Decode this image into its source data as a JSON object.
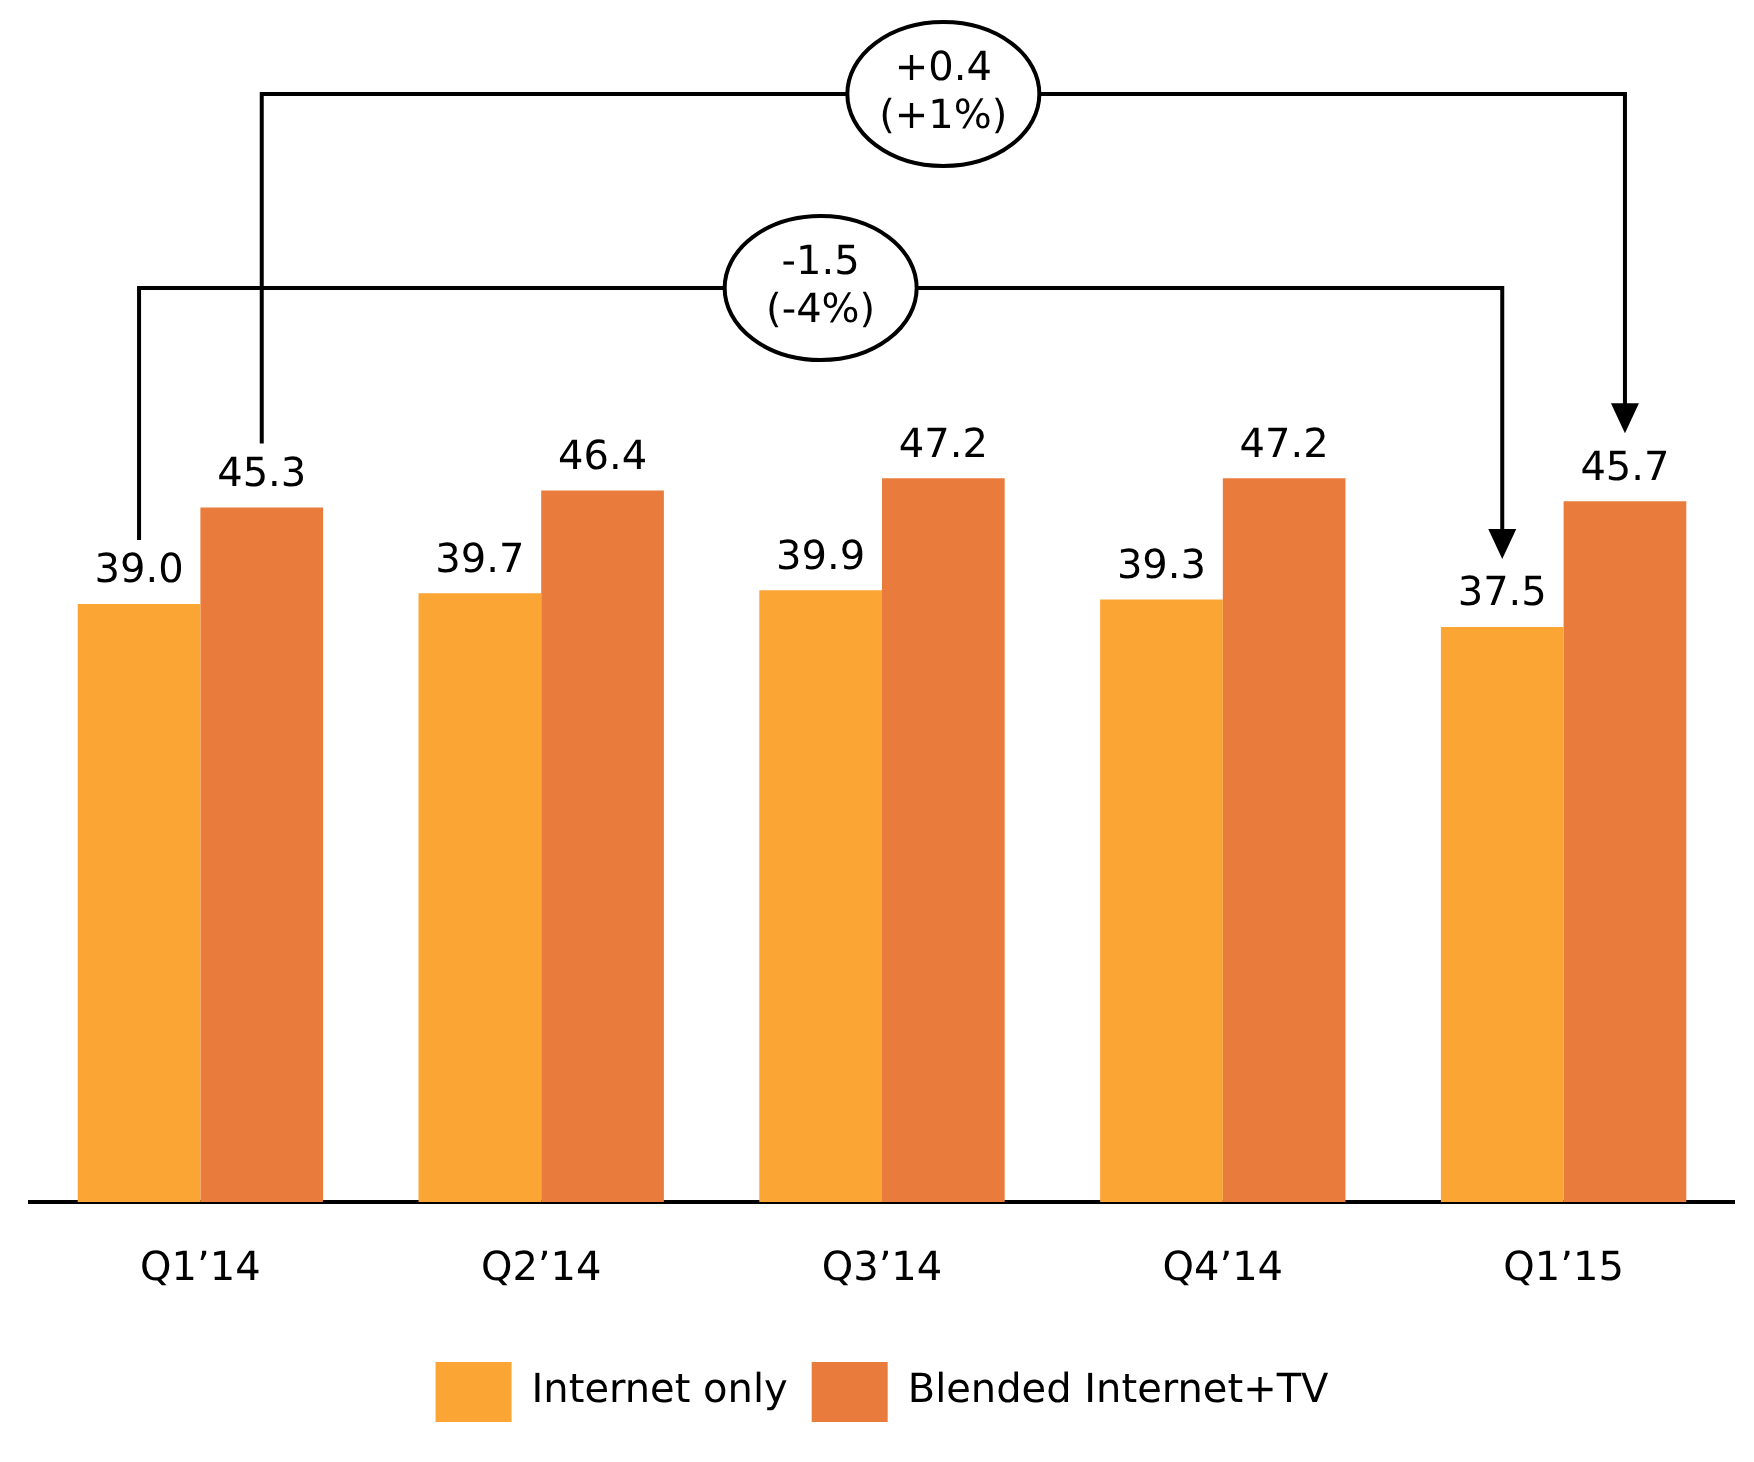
{
  "chart_data": {
    "type": "bar",
    "categories": [
      "Q1’14",
      "Q2’14",
      "Q3’14",
      "Q4’14",
      "Q1’15"
    ],
    "series": [
      {
        "name": "Internet only",
        "color": "#fba535",
        "values": [
          39.0,
          39.7,
          39.9,
          39.3,
          37.5
        ],
        "value_labels": [
          "39.0",
          "39.7",
          "39.9",
          "39.3",
          "37.5"
        ]
      },
      {
        "name": "Blended Internet+TV",
        "color": "#e97c3c",
        "values": [
          45.3,
          46.4,
          47.2,
          47.2,
          45.7
        ],
        "value_labels": [
          "45.3",
          "46.4",
          "47.2",
          "47.2",
          "45.7"
        ]
      }
    ],
    "annotations": [
      "+0.4 (+1%)",
      "-1.5 (-4%)"
    ],
    "legend": "bottom",
    "grid": false
  }
}
